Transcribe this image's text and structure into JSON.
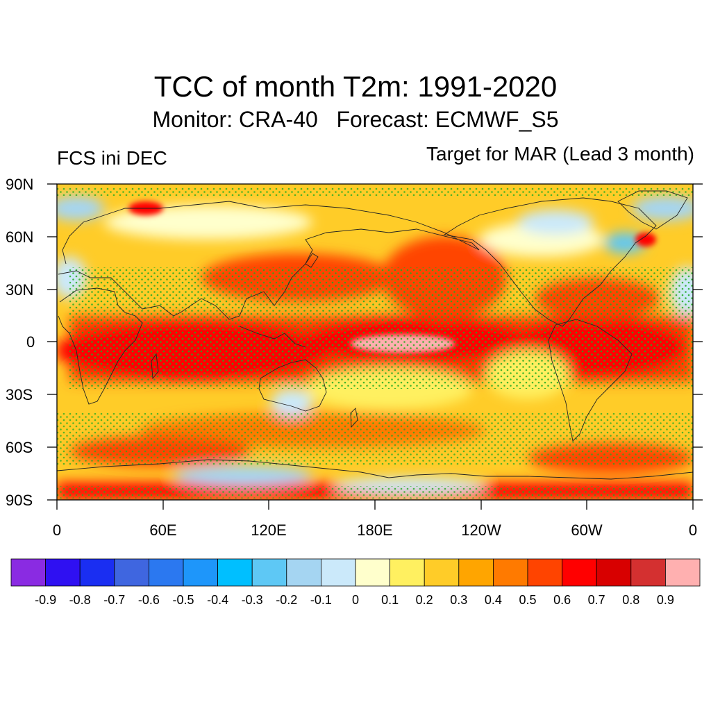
{
  "header": {
    "title": "TCC of month T2m: 1991-2020",
    "subtitle": "Monitor: CRA-40   Forecast: ECMWF_S5",
    "left_label": "FCS ini DEC",
    "right_label": "Target for MAR (Lead 3 month)"
  },
  "map": {
    "lat_labels": [
      "90N",
      "60N",
      "30N",
      "0",
      "30S",
      "60S",
      "90S"
    ],
    "lon_labels": [
      "0",
      "60E",
      "120E",
      "180E",
      "120W",
      "60W",
      "0"
    ],
    "stipple_color": "#22aa22",
    "coast_color": "#222222"
  },
  "colorbar": {
    "colors": [
      "#8a2be2",
      "#2f10f2",
      "#1a2ef2",
      "#3f66e0",
      "#2b78f0",
      "#1e96fa",
      "#00bfff",
      "#5ec8f5",
      "#a5d5f2",
      "#cbe9fa",
      "#ffffcc",
      "#fff060",
      "#ffcc28",
      "#ffa500",
      "#ff7a00",
      "#ff4400",
      "#ff0000",
      "#d80000",
      "#d43030",
      "#ffb0b0"
    ],
    "labels": [
      "-0.9",
      "-0.8",
      "-0.7",
      "-0.6",
      "-0.5",
      "-0.4",
      "-0.3",
      "-0.2",
      "-0.1",
      "0",
      "0.1",
      "0.2",
      "0.3",
      "0.4",
      "0.5",
      "0.6",
      "0.7",
      "0.8",
      "0.9"
    ]
  }
}
